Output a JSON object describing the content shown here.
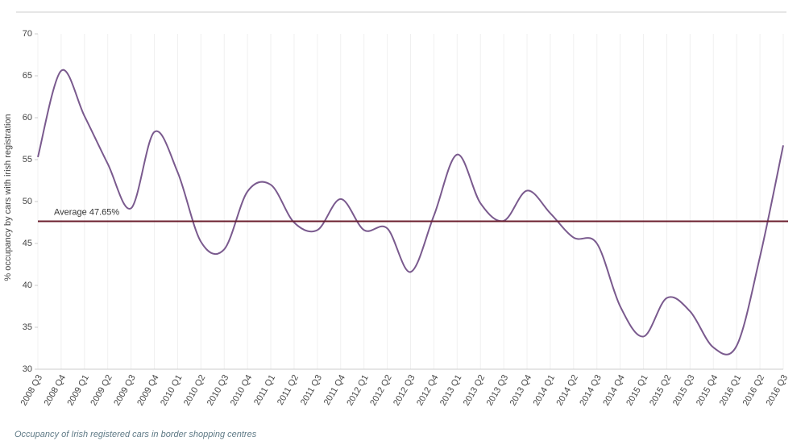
{
  "chart_data": {
    "type": "line",
    "y_label": "% occupancy by cars with irish registration",
    "caption": "Occupancy of Irish registered cars in border shopping centres",
    "categories": [
      "2008 Q3",
      "2008 Q4",
      "2009 Q1",
      "2009 Q2",
      "2009 Q3",
      "2009 Q4",
      "2010 Q1",
      "2010 Q2",
      "2010 Q3",
      "2010 Q4",
      "2011 Q1",
      "2011 Q2",
      "2011 Q3",
      "2011 Q4",
      "2012 Q1",
      "2012 Q2",
      "2012 Q3",
      "2012 Q4",
      "2013 Q1",
      "2013 Q2",
      "2013 Q3",
      "2013 Q4",
      "2014 Q1",
      "2014 Q2",
      "2014 Q3",
      "2014 Q4",
      "2015 Q1",
      "2015 Q2",
      "2015 Q3",
      "2015 Q4",
      "2016 Q1",
      "2016 Q2",
      "2016 Q3"
    ],
    "series": [
      {
        "name": "Occupancy",
        "color": "#7a5a8e",
        "values": [
          55.3,
          65.6,
          60.2,
          54.5,
          49.2,
          58.3,
          53.5,
          45.2,
          44.3,
          51.2,
          52,
          47.5,
          46.6,
          50.3,
          46.6,
          46.8,
          41.6,
          48.3,
          55.6,
          49.8,
          47.7,
          51.3,
          48.6,
          45.7,
          45,
          37.5,
          33.9,
          38.5,
          36.9,
          32.6,
          32.8,
          43.4,
          56.7
        ]
      }
    ],
    "average": {
      "value": 47.65,
      "label": "Average 47.65%",
      "color": "#6b1f2e"
    },
    "ylim": [
      30,
      70
    ],
    "yticks": [
      30,
      35,
      40,
      45,
      50,
      55,
      60,
      65,
      70
    ],
    "grid": true
  }
}
